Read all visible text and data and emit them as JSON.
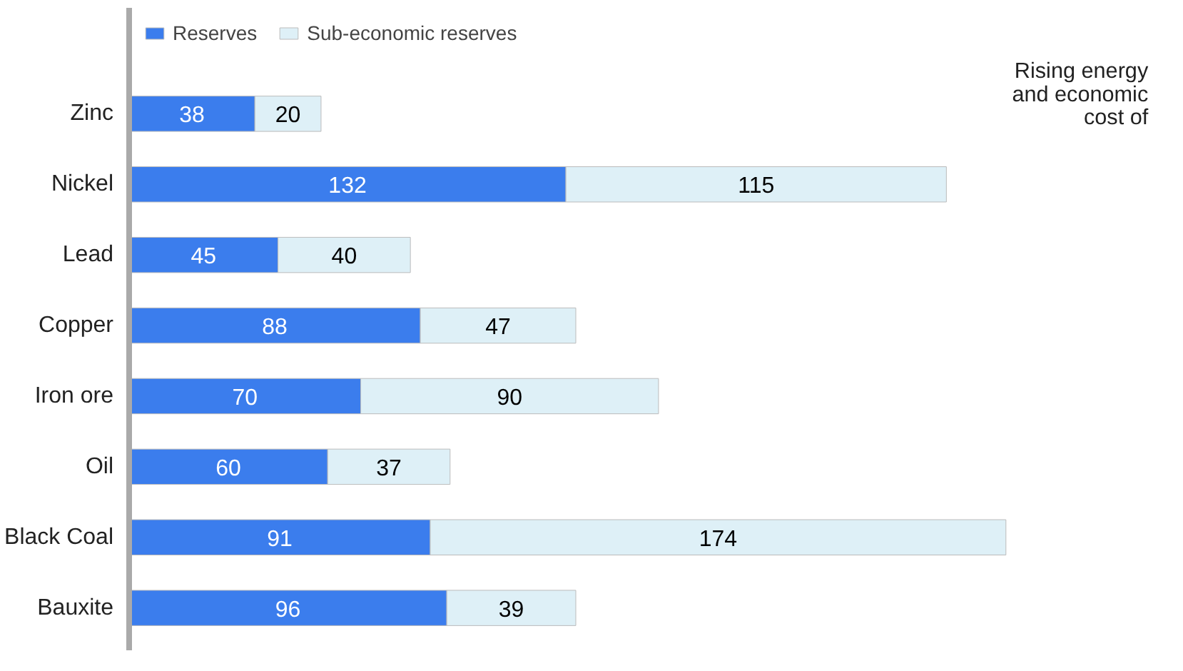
{
  "chart_data": {
    "type": "bar",
    "orientation": "horizontal",
    "stacked": true,
    "data_labels": true,
    "legend": "top left",
    "grid": false,
    "categories": [
      "Zinc",
      "Nickel",
      "Lead",
      "Copper",
      "Iron ore",
      "Oil",
      "Black Coal",
      "Bauxite"
    ],
    "series": [
      {
        "name": "Reserves",
        "color": "#3b7ded",
        "values": [
          38,
          132,
          45,
          88,
          70,
          60,
          91,
          96
        ]
      },
      {
        "name": "Sub-economic reserves",
        "color": "#def0f7",
        "values": [
          20,
          115,
          40,
          47,
          90,
          37,
          174,
          39
        ]
      }
    ],
    "annotations": [
      "Rising energy and economic cost of"
    ]
  }
}
